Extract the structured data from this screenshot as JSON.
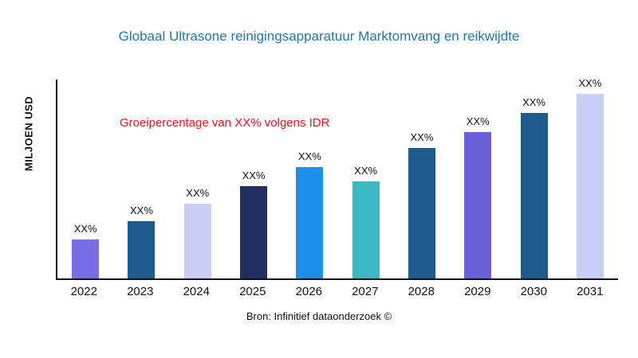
{
  "header": {
    "title": "Globaal Ultrasone reinigingsapparatuur Marktomvang en reikwijdte"
  },
  "annotation": {
    "text": "Groeipercentage van XX% volgens IDR",
    "color": "#fb0e1c"
  },
  "footer": {
    "source": "Bron: Infinitief dataonderzoek ©"
  },
  "chart_data": {
    "type": "bar",
    "title": "Globaal Ultrasone reinigingsapparatuur Marktomvang en reikwijdte",
    "title_color": "#2278a8",
    "xlabel": "",
    "ylabel": "MILJOEN USD",
    "categories": [
      "2022",
      "2023",
      "2024",
      "2025",
      "2026",
      "2027",
      "2028",
      "2029",
      "2030",
      "2031"
    ],
    "values": [
      49,
      72,
      94,
      116,
      140,
      122,
      164,
      184,
      208,
      232
    ],
    "ylim": [
      0,
      250
    ],
    "value_labels": [
      "XX%",
      "XX%",
      "XX%",
      "XX%",
      "XX%",
      "XX%",
      "XX%",
      "XX%",
      "XX%",
      "XX%"
    ],
    "colors": [
      "#7b6ce9",
      "#1f5a8c",
      "#c9cff2",
      "#20305f",
      "#1e8fea",
      "#3bb8c3",
      "#1f5a8c",
      "#6c5fd9",
      "#1f5a8c",
      "#c9cff2"
    ],
    "annotation": "Groeipercentage van XX% volgens IDR",
    "source": "Bron: Infinitief dataonderzoek ©",
    "legend": "none",
    "grid": false
  }
}
